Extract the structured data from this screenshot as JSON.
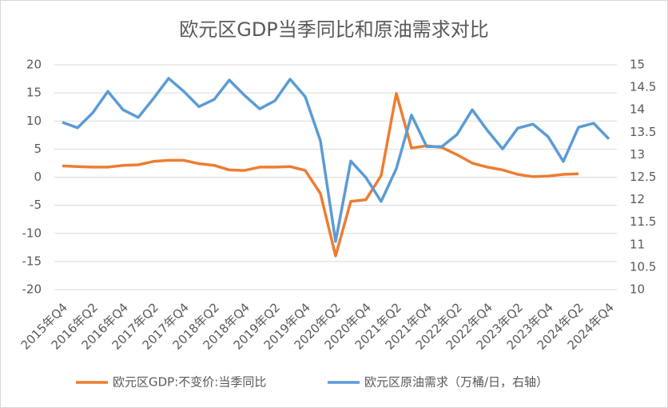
{
  "chart_data": {
    "type": "line",
    "title": "欧元区GDP当季同比和原油需求对比",
    "categories": [
      "2015年Q4",
      null,
      "2016年Q2",
      null,
      "2016年Q4",
      null,
      "2017年Q2",
      null,
      "2017年Q4",
      null,
      "2018年Q2",
      null,
      "2018年Q4",
      null,
      "2019年Q2",
      null,
      "2019年Q4",
      null,
      "2020年Q2",
      null,
      "2020年Q4",
      null,
      "2021年Q2",
      null,
      "2021年Q4",
      null,
      "2022年Q2",
      null,
      "2022年Q4",
      null,
      "2023年Q2",
      null,
      "2023年Q4",
      null,
      "2024年Q2",
      null,
      "2024年Q4"
    ],
    "series": [
      {
        "name": "欧元区GDP:不变价:当季同比",
        "color": "#ED7D31",
        "axis": "y",
        "values": [
          2.0,
          1.9,
          1.8,
          1.8,
          2.1,
          2.2,
          2.8,
          3.0,
          3.0,
          2.4,
          2.1,
          1.3,
          1.2,
          1.8,
          1.8,
          1.9,
          1.2,
          -2.9,
          -14.0,
          -4.3,
          -4.0,
          0.3,
          14.9,
          5.2,
          5.6,
          5.3,
          4.0,
          2.5,
          1.8,
          1.3,
          0.5,
          0.1,
          0.2,
          0.5,
          0.6,
          null,
          null
        ]
      },
      {
        "name": "欧元区原油需求（万桶/日，右轴）",
        "color": "#5B9BD5",
        "axis": "y2",
        "values": [
          13.72,
          13.6,
          13.93,
          14.41,
          14.0,
          13.83,
          14.25,
          14.7,
          14.41,
          14.07,
          14.23,
          14.66,
          14.32,
          14.02,
          14.2,
          14.68,
          14.29,
          13.31,
          11.07,
          12.86,
          12.49,
          11.96,
          12.69,
          13.88,
          13.18,
          13.18,
          13.45,
          14.0,
          13.54,
          13.13,
          13.59,
          13.68,
          13.4,
          12.85,
          13.61,
          13.7,
          13.35
        ]
      }
    ],
    "ylim": [
      -20,
      20
    ],
    "yticks": [
      -20,
      -15,
      -10,
      -5,
      0,
      5,
      10,
      15,
      20
    ],
    "y2lim": [
      10,
      15
    ],
    "y2ticks": [
      10,
      10.5,
      11,
      11.5,
      12,
      12.5,
      13,
      13.5,
      14,
      14.5,
      15
    ],
    "grid": true,
    "legend": "bottom"
  }
}
